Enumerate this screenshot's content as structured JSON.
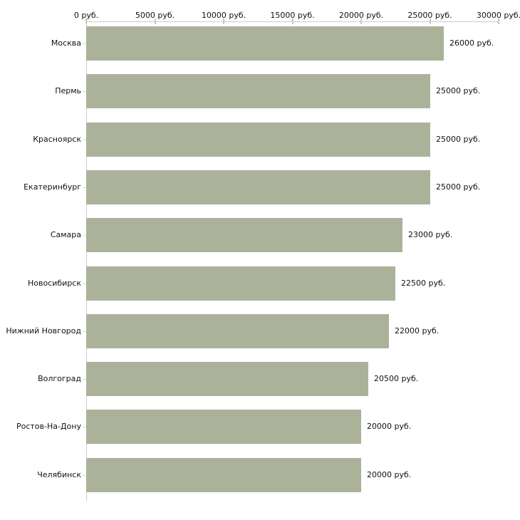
{
  "chart_data": {
    "type": "bar",
    "orientation": "horizontal",
    "title": "",
    "xlabel": "",
    "ylabel": "",
    "grid": false,
    "legend": null,
    "categories": [
      "Москва",
      "Пермь",
      "Красноярск",
      "Екатеринбург",
      "Самара",
      "Новосибирск",
      "Нижний Новгород",
      "Волгоград",
      "Ростов-На-Дону",
      "Челябинск"
    ],
    "values": [
      26000,
      25000,
      25000,
      25000,
      23000,
      22500,
      22000,
      20500,
      20000,
      20000
    ],
    "value_labels": [
      "26000 руб.",
      "25000 руб.",
      "25000 руб.",
      "25000 руб.",
      "23000 руб.",
      "22500 руб.",
      "22000 руб.",
      "20500 руб.",
      "20000 руб.",
      "20000 руб."
    ],
    "x_ticks": [
      0,
      5000,
      10000,
      15000,
      20000,
      25000,
      30000
    ],
    "x_tick_labels": [
      "0 руб.",
      "5000 руб.",
      "10000 руб.",
      "15000 руб.",
      "20000 руб.",
      "25000 руб.",
      "30000 руб."
    ],
    "xlim": [
      0,
      30000
    ],
    "colors": {
      "bar": "#abb29a",
      "axis": "#cccccc",
      "x_tick": "#c6cbb0",
      "category_tick": "#d9d9d3",
      "text": "#111111",
      "background": "#ffffff"
    }
  }
}
